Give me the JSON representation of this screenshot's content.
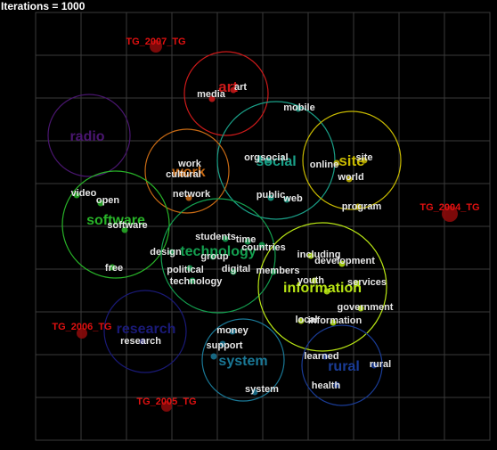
{
  "header": {
    "iterations_label": "Iterations = 1000"
  },
  "clusters": [
    {
      "label": "art",
      "color": "#cc1a1a"
    },
    {
      "label": "social",
      "color": "#1aa088"
    },
    {
      "label": "site",
      "color": "#c7b900"
    },
    {
      "label": "radio",
      "color": "#4a1670"
    },
    {
      "label": "work",
      "color": "#c86a14"
    },
    {
      "label": "software",
      "color": "#28b428"
    },
    {
      "label": "technology",
      "color": "#14a050"
    },
    {
      "label": "information",
      "color": "#b9e614"
    },
    {
      "label": "research",
      "color": "#1a1a78"
    },
    {
      "label": "system",
      "color": "#1a7896"
    },
    {
      "label": "rural",
      "color": "#1a3c96"
    }
  ],
  "terms": [
    "art",
    "media",
    "mobile",
    "org",
    "social",
    "online",
    "site",
    "world",
    "work",
    "cultural",
    "network",
    "public",
    "web",
    "program",
    "video",
    "open",
    "software",
    "students",
    "time",
    "countries",
    "design",
    "group",
    "including",
    "development",
    "political",
    "digital",
    "members",
    "technology",
    "youth",
    "services",
    "government",
    "local",
    "information",
    "money",
    "support",
    "research",
    "learned",
    "rural",
    "health",
    "system",
    "free"
  ],
  "tags": [
    {
      "label": "TG_2007_TG",
      "color": "#e01010"
    },
    {
      "label": "TG_2004_TG",
      "color": "#e01010"
    },
    {
      "label": "TG_2006_TG",
      "color": "#e01010"
    },
    {
      "label": "TG_2005_TG",
      "color": "#e01010"
    }
  ],
  "colors": {
    "background": "#000000",
    "grid": "#3a3a3a",
    "term_text": "#e6e6e6",
    "node": "#2e7d5e"
  }
}
